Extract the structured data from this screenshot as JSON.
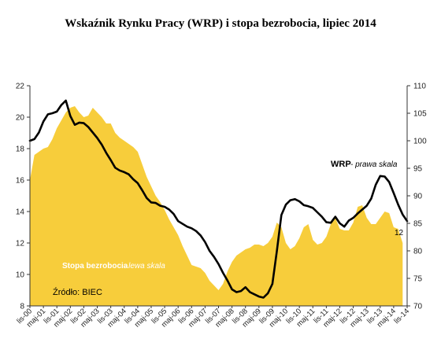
{
  "chart_data": {
    "type": "area",
    "title": "Wskaźnik Rynku Pracy (WRP) i stopa bezrobocia, lipiec 2014",
    "left_axis": {
      "ylim": [
        8,
        22
      ],
      "ticks": [
        "8",
        "10",
        "12",
        "14",
        "16",
        "18",
        "20",
        "22"
      ]
    },
    "right_axis": {
      "ylim": [
        70,
        110
      ],
      "ticks": [
        "70",
        "75",
        "80",
        "85",
        "90",
        "95",
        "100",
        "105",
        "110"
      ]
    },
    "x_ticks": [
      "lis-00",
      "maj-01",
      "lis-01",
      "maj-02",
      "lis-02",
      "maj-03",
      "lis-03",
      "maj-04",
      "lis-04",
      "maj-05",
      "lis-05",
      "maj-06",
      "lis-06",
      "maj-07",
      "lis-07",
      "maj-08",
      "lis-08",
      "maj-09",
      "lis-09",
      "maj-10",
      "lis-10",
      "maj-11",
      "lis-11",
      "maj-12",
      "lis-12",
      "maj-13",
      "lis-13",
      "maj-14",
      "lis-14"
    ],
    "grid": false,
    "series": [
      {
        "name": "Stopa bezrobocia",
        "axis": "left",
        "type": "area",
        "color": "#f7cd3b",
        "points": [
          [
            0,
            16.0
          ],
          [
            0.5,
            17.6
          ],
          [
            1,
            17.8
          ],
          [
            1.5,
            18.0
          ],
          [
            2,
            18.1
          ],
          [
            2.5,
            18.6
          ],
          [
            3,
            19.3
          ],
          [
            3.5,
            19.8
          ],
          [
            4,
            20.3
          ],
          [
            4.5,
            20.6
          ],
          [
            5,
            20.7
          ],
          [
            5.5,
            20.3
          ],
          [
            6,
            20.0
          ],
          [
            6.5,
            20.1
          ],
          [
            7,
            20.6
          ],
          [
            7.5,
            20.3
          ],
          [
            8,
            20.0
          ],
          [
            8.5,
            19.6
          ],
          [
            9,
            19.6
          ],
          [
            9.5,
            19.0
          ],
          [
            10,
            18.7
          ],
          [
            10.5,
            18.5
          ],
          [
            11,
            18.3
          ],
          [
            11.5,
            18.1
          ],
          [
            12,
            17.8
          ],
          [
            12.5,
            17.0
          ],
          [
            13,
            16.2
          ],
          [
            13.5,
            15.6
          ],
          [
            14,
            15.0
          ],
          [
            14.5,
            14.6
          ],
          [
            15,
            14.1
          ],
          [
            15.5,
            13.5
          ],
          [
            16,
            13.0
          ],
          [
            16.5,
            12.5
          ],
          [
            17,
            11.8
          ],
          [
            17.5,
            11.2
          ],
          [
            18,
            10.6
          ],
          [
            18.5,
            10.5
          ],
          [
            19,
            10.4
          ],
          [
            19.5,
            10.1
          ],
          [
            20,
            9.6
          ],
          [
            20.5,
            9.3
          ],
          [
            21,
            9.0
          ],
          [
            21.5,
            9.4
          ],
          [
            22,
            10.2
          ],
          [
            22.5,
            10.8
          ],
          [
            23,
            11.2
          ],
          [
            23.5,
            11.4
          ],
          [
            24,
            11.6
          ],
          [
            24.5,
            11.7
          ],
          [
            25,
            11.9
          ],
          [
            25.5,
            11.9
          ],
          [
            26,
            11.8
          ],
          [
            26.5,
            12.0
          ],
          [
            27,
            12.4
          ],
          [
            27.5,
            13.3
          ],
          [
            28,
            13.0
          ],
          [
            28.5,
            12.0
          ],
          [
            29,
            11.6
          ],
          [
            29.5,
            11.8
          ],
          [
            30,
            12.3
          ],
          [
            30.5,
            13.0
          ],
          [
            31,
            13.2
          ],
          [
            31.5,
            12.2
          ],
          [
            32,
            11.9
          ],
          [
            32.5,
            12.0
          ],
          [
            33,
            12.4
          ],
          [
            33.5,
            13.2
          ],
          [
            34,
            13.6
          ],
          [
            34.5,
            12.9
          ],
          [
            35,
            12.8
          ],
          [
            35.5,
            12.8
          ],
          [
            36,
            13.3
          ],
          [
            36.5,
            14.3
          ],
          [
            37,
            14.4
          ],
          [
            37.5,
            13.6
          ],
          [
            38,
            13.2
          ],
          [
            38.5,
            13.2
          ],
          [
            39,
            13.6
          ],
          [
            39.5,
            14.0
          ],
          [
            40,
            13.9
          ],
          [
            40.5,
            13.0
          ],
          [
            41,
            12.9
          ],
          [
            41.5,
            12.0
          ]
        ]
      },
      {
        "name": "WRP",
        "axis": "right",
        "type": "line",
        "color": "#000000",
        "points": [
          [
            0,
            100.0
          ],
          [
            0.5,
            100.3
          ],
          [
            1,
            101.5
          ],
          [
            1.5,
            103.5
          ],
          [
            2,
            104.8
          ],
          [
            2.5,
            105.0
          ],
          [
            3,
            105.3
          ],
          [
            3.5,
            106.5
          ],
          [
            4,
            107.3
          ],
          [
            4.5,
            104.5
          ],
          [
            5,
            102.9
          ],
          [
            5.5,
            103.3
          ],
          [
            6,
            103.2
          ],
          [
            6.5,
            102.5
          ],
          [
            7,
            101.5
          ],
          [
            7.5,
            100.5
          ],
          [
            8,
            99.3
          ],
          [
            8.5,
            97.8
          ],
          [
            9,
            96.5
          ],
          [
            9.5,
            95.1
          ],
          [
            10,
            94.6
          ],
          [
            10.5,
            94.3
          ],
          [
            11,
            93.9
          ],
          [
            11.5,
            93.0
          ],
          [
            12,
            92.3
          ],
          [
            12.5,
            91.0
          ],
          [
            13,
            89.6
          ],
          [
            13.5,
            88.8
          ],
          [
            14,
            88.7
          ],
          [
            14.5,
            88.2
          ],
          [
            15,
            88.0
          ],
          [
            15.5,
            87.5
          ],
          [
            16,
            86.7
          ],
          [
            16.5,
            85.4
          ],
          [
            17,
            84.9
          ],
          [
            17.5,
            84.4
          ],
          [
            18,
            84.1
          ],
          [
            18.5,
            83.6
          ],
          [
            19,
            82.8
          ],
          [
            19.5,
            81.6
          ],
          [
            20,
            80.0
          ],
          [
            20.5,
            78.9
          ],
          [
            21,
            77.6
          ],
          [
            21.5,
            76.0
          ],
          [
            22,
            74.6
          ],
          [
            22.5,
            73.0
          ],
          [
            23,
            72.5
          ],
          [
            23.5,
            72.7
          ],
          [
            24,
            73.4
          ],
          [
            24.5,
            72.5
          ],
          [
            25,
            72.1
          ],
          [
            25.5,
            71.7
          ],
          [
            26,
            71.5
          ],
          [
            26.5,
            72.3
          ],
          [
            27,
            74.0
          ],
          [
            27.5,
            80.0
          ],
          [
            28,
            86.5
          ],
          [
            28.5,
            88.4
          ],
          [
            29,
            89.2
          ],
          [
            29.5,
            89.4
          ],
          [
            30,
            89.0
          ],
          [
            30.5,
            88.3
          ],
          [
            31,
            88.1
          ],
          [
            31.5,
            87.8
          ],
          [
            32,
            87.0
          ],
          [
            32.5,
            86.2
          ],
          [
            33,
            85.2
          ],
          [
            33.5,
            85.1
          ],
          [
            34,
            86.2
          ],
          [
            34.5,
            85.0
          ],
          [
            35,
            84.4
          ],
          [
            35.5,
            85.5
          ],
          [
            36,
            86.0
          ],
          [
            36.5,
            86.8
          ],
          [
            37,
            87.5
          ],
          [
            37.5,
            88.2
          ],
          [
            38,
            89.5
          ],
          [
            38.5,
            92.0
          ],
          [
            39,
            93.6
          ],
          [
            39.5,
            93.5
          ],
          [
            40,
            92.5
          ],
          [
            40.5,
            90.5
          ],
          [
            41,
            88.4
          ],
          [
            41.5,
            86.6
          ],
          [
            42,
            85.4
          ]
        ]
      }
    ],
    "annotations": {
      "wrp_label": "WRP",
      "wrp_sub": "- prawa skala",
      "unemp_label": "Stopa bezrobocia",
      "unemp_sub": "- lewa skala",
      "source": "Źródło: BIEC",
      "end_value": "12"
    }
  }
}
